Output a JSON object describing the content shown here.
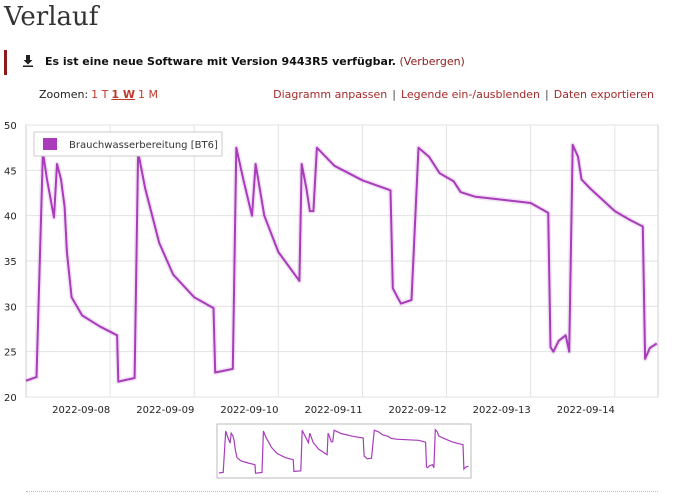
{
  "page": {
    "title": "Verlauf"
  },
  "notice": {
    "message": "Es ist eine neue Software mit Version 9443R5 verfügbar.",
    "hide_label": "(Verbergen)",
    "icon": "download-icon"
  },
  "zoom": {
    "label": "Zoomen:",
    "options": [
      {
        "label": "1 T",
        "active": false
      },
      {
        "label": "1 W",
        "active": true
      },
      {
        "label": "1 M",
        "active": false
      }
    ]
  },
  "actions": {
    "customize": "Diagramm anpassen",
    "toggle_legend": "Legende ein-/ausblenden",
    "export": "Daten exportieren",
    "separator": "|"
  },
  "colors": {
    "series": "#a83cba",
    "accent": "#a52a2a",
    "grid": "#e2e2e2"
  },
  "chart_data": {
    "type": "line",
    "series": [
      {
        "name": "Brauchwasserbereitung [BT6]",
        "points": [
          [
            "2022-09-07 00:00",
            21.8
          ],
          [
            "2022-09-07 03:00",
            22.2
          ],
          [
            "2022-09-07 04:50",
            47.0
          ],
          [
            "2022-09-07 06:00",
            44.0
          ],
          [
            "2022-09-07 08:00",
            39.8
          ],
          [
            "2022-09-07 08:50",
            45.7
          ],
          [
            "2022-09-07 10:00",
            44.0
          ],
          [
            "2022-09-07 11:00",
            41.0
          ],
          [
            "2022-09-07 11:40",
            36.0
          ],
          [
            "2022-09-07 13:00",
            31.0
          ],
          [
            "2022-09-07 16:00",
            29.0
          ],
          [
            "2022-09-07 21:00",
            27.8
          ],
          [
            "2022-09-08 02:00",
            26.8
          ],
          [
            "2022-09-08 02:20",
            21.7
          ],
          [
            "2022-09-08 07:00",
            22.1
          ],
          [
            "2022-09-08 08:00",
            47.0
          ],
          [
            "2022-09-08 10:00",
            43.0
          ],
          [
            "2022-09-08 14:00",
            37.0
          ],
          [
            "2022-09-08 18:00",
            33.5
          ],
          [
            "2022-09-09 00:00",
            31.0
          ],
          [
            "2022-09-09 05:30",
            29.8
          ],
          [
            "2022-09-09 06:00",
            22.7
          ],
          [
            "2022-09-09 11:00",
            23.1
          ],
          [
            "2022-09-09 12:00",
            47.5
          ],
          [
            "2022-09-09 14:00",
            44.0
          ],
          [
            "2022-09-09 16:30",
            40.0
          ],
          [
            "2022-09-09 17:30",
            45.7
          ],
          [
            "2022-09-09 20:00",
            40.0
          ],
          [
            "2022-09-10 00:00",
            36.0
          ],
          [
            "2022-09-10 06:00",
            32.8
          ],
          [
            "2022-09-10 06:40",
            45.7
          ],
          [
            "2022-09-10 08:00",
            43.0
          ],
          [
            "2022-09-10 09:00",
            40.5
          ],
          [
            "2022-09-10 10:00",
            40.5
          ],
          [
            "2022-09-10 11:00",
            47.5
          ],
          [
            "2022-09-10 16:00",
            45.5
          ],
          [
            "2022-09-11 00:00",
            43.9
          ],
          [
            "2022-09-11 08:00",
            42.8
          ],
          [
            "2022-09-11 08:40",
            32.0
          ],
          [
            "2022-09-11 10:00",
            31.0
          ],
          [
            "2022-09-11 11:00",
            30.3
          ],
          [
            "2022-09-11 14:00",
            30.7
          ],
          [
            "2022-09-11 16:00",
            47.5
          ],
          [
            "2022-09-11 19:00",
            46.5
          ],
          [
            "2022-09-11 22:00",
            44.7
          ],
          [
            "2022-09-12 02:00",
            43.8
          ],
          [
            "2022-09-12 04:00",
            42.6
          ],
          [
            "2022-09-12 08:00",
            42.1
          ],
          [
            "2022-09-13 00:00",
            41.4
          ],
          [
            "2022-09-13 05:00",
            40.3
          ],
          [
            "2022-09-13 05:40",
            25.5
          ],
          [
            "2022-09-13 06:30",
            25.0
          ],
          [
            "2022-09-13 08:00",
            26.2
          ],
          [
            "2022-09-13 10:00",
            26.8
          ],
          [
            "2022-09-13 11:00",
            25.0
          ],
          [
            "2022-09-13 12:00",
            47.8
          ],
          [
            "2022-09-13 13:30",
            46.5
          ],
          [
            "2022-09-13 14:30",
            44.0
          ],
          [
            "2022-09-13 17:00",
            43.0
          ],
          [
            "2022-09-14 00:00",
            40.5
          ],
          [
            "2022-09-14 04:00",
            39.6
          ],
          [
            "2022-09-14 08:00",
            38.8
          ],
          [
            "2022-09-14 08:40",
            24.2
          ],
          [
            "2022-09-14 10:00",
            25.4
          ],
          [
            "2022-09-14 12:00",
            25.9
          ]
        ]
      }
    ],
    "x_axis": {
      "ticks": [
        "2022-09-08",
        "2022-09-09",
        "2022-09-10",
        "2022-09-11",
        "2022-09-12",
        "2022-09-13",
        "2022-09-14"
      ],
      "range": [
        "2022-09-07 00:00",
        "2022-09-14 12:20"
      ]
    },
    "y_axis": {
      "ticks": [
        20,
        25,
        30,
        35,
        40,
        45,
        50
      ],
      "range": [
        20,
        50
      ]
    },
    "grid": true,
    "legend": "top-left",
    "navigator": true
  }
}
